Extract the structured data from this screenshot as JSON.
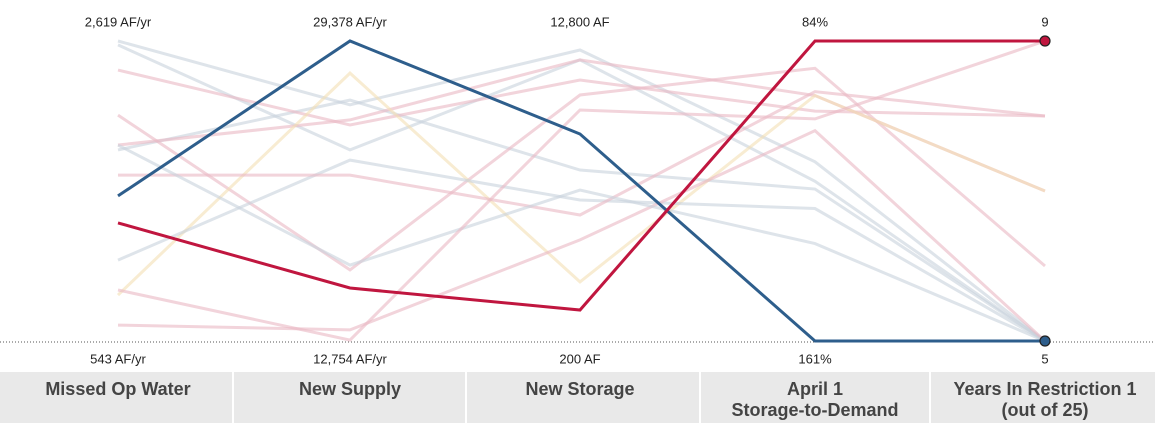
{
  "chart_data": {
    "type": "parallel",
    "dimensions": [
      {
        "name": [
          "Missed Op Water"
        ],
        "ylim": [
          543,
          2619
        ],
        "yticks": [
          {
            "value": 543,
            "label": "543 AF/yr"
          },
          {
            "value": 2619,
            "label": "2,619 AF/yr"
          }
        ]
      },
      {
        "name": [
          "New Supply"
        ],
        "ylim": [
          12754,
          29378
        ],
        "yticks": [
          {
            "value": 12754,
            "label": "12,754 AF/yr"
          },
          {
            "value": 29378,
            "label": "29,378 AF/yr"
          }
        ]
      },
      {
        "name": [
          "New Storage"
        ],
        "ylim": [
          200,
          12800
        ],
        "yticks": [
          {
            "value": 200,
            "label": "200 AF"
          },
          {
            "value": 12800,
            "label": "12,800 AF"
          }
        ]
      },
      {
        "name": [
          "April 1",
          "Storage-to-Demand"
        ],
        "ylim": [
          161,
          84
        ],
        "yticks": [
          {
            "value": 161,
            "label": "161%"
          },
          {
            "value": 84,
            "label": "84%"
          }
        ]
      },
      {
        "name": [
          "Years In Restriction 1",
          "(out of 25)"
        ],
        "ylim": [
          5,
          9
        ],
        "yticks": [
          5,
          9
        ]
      }
    ],
    "series": [
      {
        "color": "#c8d2dc",
        "values": [
          2619,
          25838,
          12422,
          115,
          5
        ]
      },
      {
        "color": "#c8d2dc",
        "values": [
          2592,
          23343,
          12006,
          120,
          5
        ]
      },
      {
        "color": "#c8d2dc",
        "values": [
          1865,
          26103,
          7382,
          122,
          5
        ]
      },
      {
        "color": "#eab8c3",
        "values": [
          2418,
          24723,
          11162,
          102,
          8
        ]
      },
      {
        "color": "#eab8c3",
        "values": [
          1899,
          25006,
          12006,
          98,
          7
        ]
      },
      {
        "color": "#eab8c3",
        "values": [
          2106,
          16694,
          10532,
          91,
          6
        ]
      },
      {
        "color": "#f3e0b4",
        "values": [
          861,
          27599,
          2682,
          98,
          7
        ]
      },
      {
        "color": "#c8d2dc",
        "values": [
          1103,
          22778,
          6122,
          127,
          5
        ]
      },
      {
        "color": "#eab8c3",
        "values": [
          1691,
          21947,
          5492,
          97,
          8
        ]
      },
      {
        "color": "#eab8c3",
        "values": [
          653,
          13369,
          4446,
          107,
          5
        ]
      },
      {
        "color": "#c8d2dc",
        "values": [
          1899,
          16960,
          6538,
          136,
          5
        ]
      },
      {
        "color": "#eab8c3",
        "values": [
          896,
          12804,
          9902,
          104,
          9
        ]
      },
      {
        "color": "#2e5e8c",
        "highlight": true,
        "values": [
          1547,
          29378,
          8894,
          161,
          5
        ]
      },
      {
        "color": "#c0163f",
        "highlight": true,
        "values": [
          1360,
          15691,
          1502,
          84,
          9
        ]
      }
    ]
  }
}
